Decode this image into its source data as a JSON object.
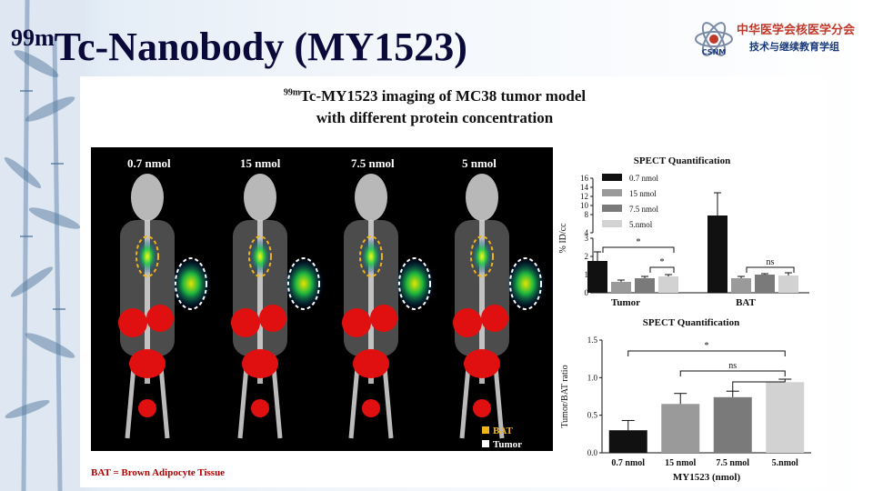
{
  "slide": {
    "title_sup": "99m",
    "title_main": "Tc-Nanobody (MY1523)",
    "logo_line1": "中华医学会核医学分会",
    "logo_line2": "技术与继续教育学组",
    "logo_mark": "CSNM"
  },
  "figure": {
    "title_sup": "99m",
    "title_line1": "Tc-MY1523 imaging of MC38 tumor model",
    "title_line2": "with different protein concentration",
    "panel_labels": [
      "0.7 nmol",
      "15 nmol",
      "7.5 nmol",
      "5 nmol"
    ],
    "legend_bat": "BAT",
    "legend_tumor": "Tumor",
    "footnote": "BAT = Brown Adipocyte Tissue",
    "colors": {
      "bat_marker": "#f0b418",
      "tumor_marker": "#ffffff",
      "footnote": "#b00000"
    }
  },
  "chart_data": [
    {
      "type": "bar",
      "title": "SPECT Quantification",
      "ylabel": "% ID/cc",
      "categories": [
        "Tumor",
        "BAT"
      ],
      "axis_break": true,
      "yticks_lower": [
        0,
        1,
        2,
        3
      ],
      "yticks_upper": [
        8,
        10,
        12,
        14,
        16
      ],
      "series": [
        {
          "name": "0.7 nmol",
          "color": "#111111",
          "values": [
            1.75,
            7.8
          ],
          "errors": [
            0.5,
            5.0
          ]
        },
        {
          "name": "15 nmol",
          "color": "#9a9a9a",
          "values": [
            0.6,
            0.8
          ],
          "errors": [
            0.1,
            0.1
          ]
        },
        {
          "name": "7.5 nmol",
          "color": "#7a7a7a",
          "values": [
            0.8,
            1.0
          ],
          "errors": [
            0.1,
            0.05
          ]
        },
        {
          "name": "5.nmol",
          "color": "#d2d2d2",
          "values": [
            0.9,
            0.95
          ],
          "errors": [
            0.1,
            0.15
          ]
        }
      ],
      "annotations": [
        "*",
        "*",
        "ns"
      ]
    },
    {
      "type": "bar",
      "title": "SPECT Quantification",
      "ylabel": "Tumor/BAT ratio",
      "xlabel": "MY1523 (nmol)",
      "categories": [
        "0.7 nmol",
        "15 nmol",
        "7.5 nmol",
        "5.nmol"
      ],
      "values": [
        0.3,
        0.65,
        0.74,
        0.94
      ],
      "errors": [
        0.13,
        0.14,
        0.08,
        0.04
      ],
      "colors": [
        "#111111",
        "#9a9a9a",
        "#7a7a7a",
        "#d2d2d2"
      ],
      "ylim": [
        0,
        1.5
      ],
      "yticks": [
        "0.0",
        "0.5",
        "1.0",
        "1.5"
      ],
      "annotations": [
        "*",
        "ns"
      ]
    }
  ]
}
